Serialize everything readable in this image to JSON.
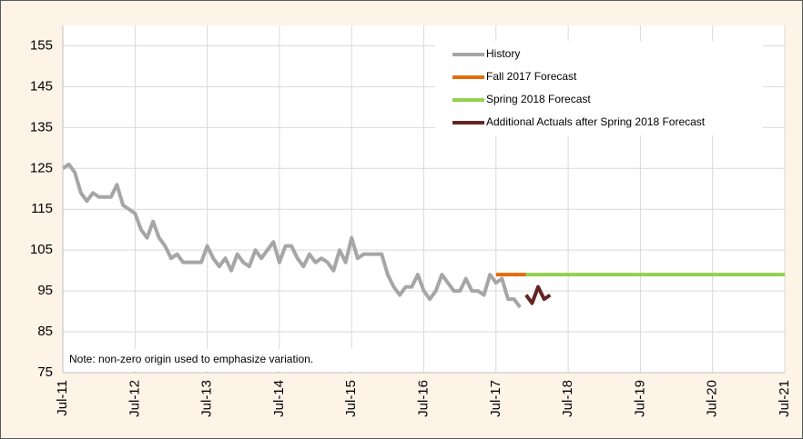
{
  "chart_data": {
    "type": "line",
    "annotation": "Note: non-zero origin used to emphasize variation.",
    "xlim": [
      "2011-07",
      "2021-07"
    ],
    "xticks": [
      {
        "value": "2011-07",
        "label": "Jul-11"
      },
      {
        "value": "2012-07",
        "label": "Jul-12"
      },
      {
        "value": "2013-07",
        "label": "Jul-13"
      },
      {
        "value": "2014-07",
        "label": "Jul-14"
      },
      {
        "value": "2015-07",
        "label": "Jul-15"
      },
      {
        "value": "2016-07",
        "label": "Jul-16"
      },
      {
        "value": "2017-07",
        "label": "Jul-17"
      },
      {
        "value": "2018-07",
        "label": "Jul-18"
      },
      {
        "value": "2019-07",
        "label": "Jul-19"
      },
      {
        "value": "2020-07",
        "label": "Jul-20"
      },
      {
        "value": "2021-07",
        "label": "Jul-21"
      }
    ],
    "ylim": [
      75,
      160
    ],
    "yticks": [
      75,
      85,
      95,
      105,
      115,
      125,
      135,
      145,
      155
    ],
    "grid": true,
    "legend": "upper right",
    "series": [
      {
        "name": "History",
        "color": "#a6a6a6",
        "x": [
          "2011-07",
          "2011-08",
          "2011-09",
          "2011-10",
          "2011-11",
          "2011-12",
          "2012-01",
          "2012-02",
          "2012-03",
          "2012-04",
          "2012-05",
          "2012-06",
          "2012-07",
          "2012-08",
          "2012-09",
          "2012-10",
          "2012-11",
          "2012-12",
          "2013-01",
          "2013-02",
          "2013-03",
          "2013-04",
          "2013-05",
          "2013-06",
          "2013-07",
          "2013-08",
          "2013-09",
          "2013-10",
          "2013-11",
          "2013-12",
          "2014-01",
          "2014-02",
          "2014-03",
          "2014-04",
          "2014-05",
          "2014-06",
          "2014-07",
          "2014-08",
          "2014-09",
          "2014-10",
          "2014-11",
          "2014-12",
          "2015-01",
          "2015-02",
          "2015-03",
          "2015-04",
          "2015-05",
          "2015-06",
          "2015-07",
          "2015-08",
          "2015-09",
          "2015-10",
          "2015-11",
          "2015-12",
          "2016-01",
          "2016-02",
          "2016-03",
          "2016-04",
          "2016-05",
          "2016-06",
          "2016-07",
          "2016-08",
          "2016-09",
          "2016-10",
          "2016-11",
          "2016-12",
          "2017-01",
          "2017-02",
          "2017-03",
          "2017-04",
          "2017-05",
          "2017-06",
          "2017-07",
          "2017-08",
          "2017-09",
          "2017-10",
          "2017-11"
        ],
        "values": [
          125,
          126,
          124,
          119,
          117,
          119,
          118,
          118,
          118,
          121,
          116,
          115,
          114,
          110,
          108,
          112,
          108,
          106,
          103,
          104,
          102,
          102,
          102,
          102,
          106,
          103,
          101,
          103,
          100,
          104,
          102,
          101,
          105,
          103,
          105,
          107,
          102,
          106,
          106,
          103,
          101,
          104,
          102,
          103,
          102,
          100,
          105,
          102,
          108,
          103,
          104,
          104,
          104,
          104,
          99,
          96,
          94,
          96,
          96,
          99,
          95,
          93,
          95,
          99,
          97,
          95,
          95,
          98,
          95,
          95,
          94,
          99,
          97,
          98,
          93,
          93,
          91
        ]
      },
      {
        "name": "Fall 2017 Forecast",
        "color": "#e46c0a",
        "x": [
          "2017-07",
          "2017-12"
        ],
        "values": [
          99,
          99
        ]
      },
      {
        "name": "Spring 2018 Forecast",
        "color": "#92d050",
        "x": [
          "2017-12",
          "2021-07"
        ],
        "values": [
          99,
          99
        ]
      },
      {
        "name": "Additional Actuals after Spring 2018 Forecast",
        "color": "#632523",
        "x": [
          "2017-12",
          "2018-01",
          "2018-02",
          "2018-03",
          "2018-04"
        ],
        "values": [
          94,
          92,
          96,
          93,
          94
        ]
      }
    ]
  }
}
